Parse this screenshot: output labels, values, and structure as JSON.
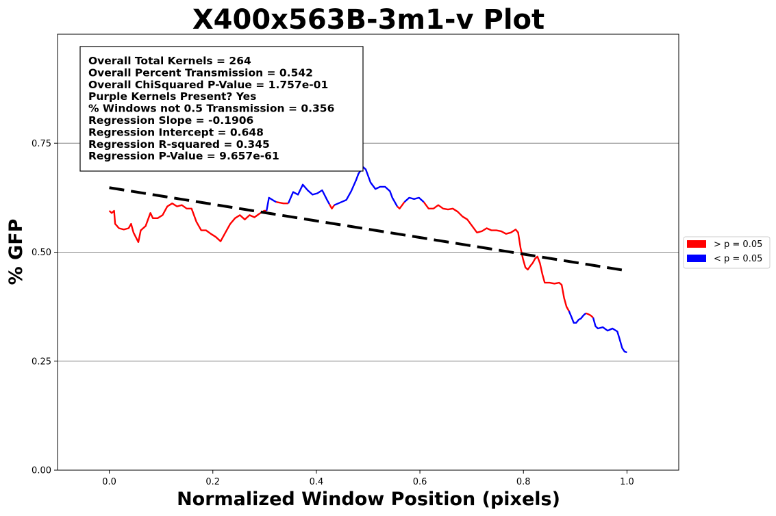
{
  "chart_data": {
    "type": "line",
    "title": "X400x563B-3m1-v Plot",
    "xlabel": "Normalized Window Position (pixels)",
    "ylabel": "% GFP",
    "xlim": [
      -0.1,
      1.1
    ],
    "ylim": [
      0,
      1.0
    ],
    "x_ticks": [
      "0.0",
      "0.2",
      "0.4",
      "0.6",
      "0.8",
      "1.0"
    ],
    "y_ticks": [
      "0.00",
      "0.25",
      "0.50",
      "0.75"
    ],
    "grid": "horizontal at y ticks",
    "legend_placement": "right, outside plot",
    "legend": [
      {
        "label": "> p = 0.05",
        "color": "#ff0000"
      },
      {
        "label": "< p = 0.05",
        "color": "#0000ff"
      }
    ],
    "stats_box": [
      "Overall Total Kernels = 264",
      "Overall Percent Transmission = 0.542",
      "Overall ChiSquared P-Value = 1.757e-01",
      "Purple Kernels Present? Yes",
      "% Windows not 0.5 Transmission = 0.356",
      "Regression Slope = -0.1906",
      "Regression Intercept = 0.648",
      "Regression R-squared = 0.345",
      "Regression P-Value = 9.657e-61"
    ],
    "regression": {
      "slope": -0.1906,
      "intercept": 0.648,
      "x_range": [
        0.0,
        0.99
      ],
      "color": "#000000",
      "style": "dashed"
    },
    "series": [
      {
        "color": "#ff0000",
        "points": [
          [
            0.0,
            0.595
          ],
          [
            0.005,
            0.59
          ],
          [
            0.01,
            0.595
          ],
          [
            0.012,
            0.565
          ],
          [
            0.02,
            0.555
          ],
          [
            0.03,
            0.552
          ],
          [
            0.04,
            0.555
          ],
          [
            0.045,
            0.565
          ],
          [
            0.05,
            0.545
          ],
          [
            0.06,
            0.523
          ],
          [
            0.065,
            0.55
          ],
          [
            0.075,
            0.56
          ],
          [
            0.085,
            0.59
          ],
          [
            0.09,
            0.578
          ],
          [
            0.1,
            0.578
          ],
          [
            0.11,
            0.585
          ],
          [
            0.12,
            0.605
          ],
          [
            0.13,
            0.612
          ],
          [
            0.14,
            0.605
          ],
          [
            0.15,
            0.608
          ],
          [
            0.16,
            0.6
          ],
          [
            0.17,
            0.6
          ],
          [
            0.18,
            0.57
          ],
          [
            0.19,
            0.55
          ],
          [
            0.2,
            0.55
          ],
          [
            0.21,
            0.542
          ],
          [
            0.22,
            0.535
          ],
          [
            0.23,
            0.525
          ],
          [
            0.24,
            0.545
          ],
          [
            0.25,
            0.565
          ],
          [
            0.26,
            0.578
          ],
          [
            0.27,
            0.585
          ],
          [
            0.28,
            0.575
          ],
          [
            0.29,
            0.585
          ],
          [
            0.3,
            0.58
          ],
          [
            0.31,
            0.588
          ],
          [
            0.32,
            0.595
          ],
          [
            0.325,
            0.595
          ]
        ]
      },
      {
        "color": "#0000ff",
        "points": [
          [
            0.325,
            0.595
          ],
          [
            0.33,
            0.625
          ],
          [
            0.34,
            0.618
          ],
          [
            0.345,
            0.615
          ]
        ]
      },
      {
        "color": "#ff0000",
        "points": [
          [
            0.345,
            0.615
          ],
          [
            0.36,
            0.612
          ],
          [
            0.37,
            0.612
          ]
        ]
      },
      {
        "color": "#0000ff",
        "points": [
          [
            0.37,
            0.612
          ],
          [
            0.38,
            0.638
          ],
          [
            0.39,
            0.632
          ],
          [
            0.4,
            0.655
          ],
          [
            0.41,
            0.642
          ],
          [
            0.42,
            0.632
          ],
          [
            0.43,
            0.635
          ],
          [
            0.44,
            0.642
          ],
          [
            0.45,
            0.62
          ],
          [
            0.455,
            0.61
          ]
        ]
      },
      {
        "color": "#ff0000",
        "points": [
          [
            0.455,
            0.61
          ],
          [
            0.46,
            0.6
          ],
          [
            0.465,
            0.608
          ]
        ]
      },
      {
        "color": "#0000ff",
        "points": [
          [
            0.465,
            0.608
          ],
          [
            0.48,
            0.615
          ],
          [
            0.49,
            0.62
          ],
          [
            0.5,
            0.64
          ],
          [
            0.51,
            0.665
          ],
          [
            0.515,
            0.68
          ],
          [
            0.52,
            0.688
          ],
          [
            0.525,
            0.695
          ],
          [
            0.53,
            0.69
          ],
          [
            0.535,
            0.675
          ],
          [
            0.54,
            0.66
          ],
          [
            0.55,
            0.645
          ],
          [
            0.56,
            0.65
          ],
          [
            0.57,
            0.65
          ],
          [
            0.58,
            0.64
          ],
          [
            0.585,
            0.625
          ],
          [
            0.59,
            0.615
          ],
          [
            0.595,
            0.605
          ]
        ]
      },
      {
        "color": "#ff0000",
        "points": [
          [
            0.595,
            0.605
          ],
          [
            0.6,
            0.6
          ],
          [
            0.61,
            0.615
          ]
        ]
      },
      {
        "color": "#0000ff",
        "points": [
          [
            0.61,
            0.615
          ],
          [
            0.62,
            0.625
          ],
          [
            0.63,
            0.622
          ],
          [
            0.64,
            0.625
          ],
          [
            0.65,
            0.615
          ]
        ]
      },
      {
        "color": "#ff0000",
        "points": [
          [
            0.65,
            0.615
          ],
          [
            0.66,
            0.6
          ],
          [
            0.67,
            0.6
          ],
          [
            0.68,
            0.608
          ],
          [
            0.69,
            0.6
          ],
          [
            0.7,
            0.598
          ],
          [
            0.71,
            0.6
          ],
          [
            0.72,
            0.593
          ],
          [
            0.73,
            0.582
          ],
          [
            0.74,
            0.575
          ],
          [
            0.75,
            0.56
          ],
          [
            0.76,
            0.545
          ],
          [
            0.77,
            0.548
          ],
          [
            0.78,
            0.555
          ],
          [
            0.79,
            0.55
          ],
          [
            0.8,
            0.55
          ],
          [
            0.81,
            0.548
          ],
          [
            0.82,
            0.542
          ],
          [
            0.83,
            0.545
          ],
          [
            0.84,
            0.552
          ],
          [
            0.845,
            0.545
          ],
          [
            0.85,
            0.51
          ],
          [
            0.855,
            0.485
          ],
          [
            0.86,
            0.465
          ],
          [
            0.865,
            0.46
          ],
          [
            0.87,
            0.468
          ],
          [
            0.875,
            0.475
          ],
          [
            0.88,
            0.485
          ],
          [
            0.885,
            0.49
          ],
          [
            0.89,
            0.475
          ],
          [
            0.895,
            0.45
          ],
          [
            0.9,
            0.43
          ],
          [
            0.91,
            0.43
          ],
          [
            0.92,
            0.428
          ],
          [
            0.93,
            0.43
          ],
          [
            0.935,
            0.425
          ],
          [
            0.94,
            0.395
          ],
          [
            0.945,
            0.375
          ],
          [
            0.95,
            0.365
          ]
        ]
      },
      {
        "color": "#0000ff",
        "points": [
          [
            0.95,
            0.365
          ],
          [
            0.955,
            0.352
          ],
          [
            0.96,
            0.338
          ],
          [
            0.965,
            0.338
          ],
          [
            0.97,
            0.345
          ],
          [
            0.975,
            0.348
          ],
          [
            0.98,
            0.355
          ],
          [
            0.985,
            0.36
          ]
        ]
      },
      {
        "color": "#ff0000",
        "points": [
          [
            0.985,
            0.36
          ],
          [
            0.99,
            0.358
          ],
          [
            0.995,
            0.355
          ],
          [
            1.0,
            0.35
          ]
        ]
      },
      {
        "color": "#0000ff",
        "points": [
          [
            1.0,
            0.35
          ],
          [
            1.005,
            0.33
          ],
          [
            1.01,
            0.325
          ],
          [
            1.02,
            0.328
          ],
          [
            1.03,
            0.32
          ],
          [
            1.04,
            0.325
          ],
          [
            1.05,
            0.318
          ],
          [
            1.055,
            0.3
          ],
          [
            1.06,
            0.28
          ],
          [
            1.065,
            0.272
          ],
          [
            1.07,
            0.27
          ]
        ]
      }
    ]
  }
}
